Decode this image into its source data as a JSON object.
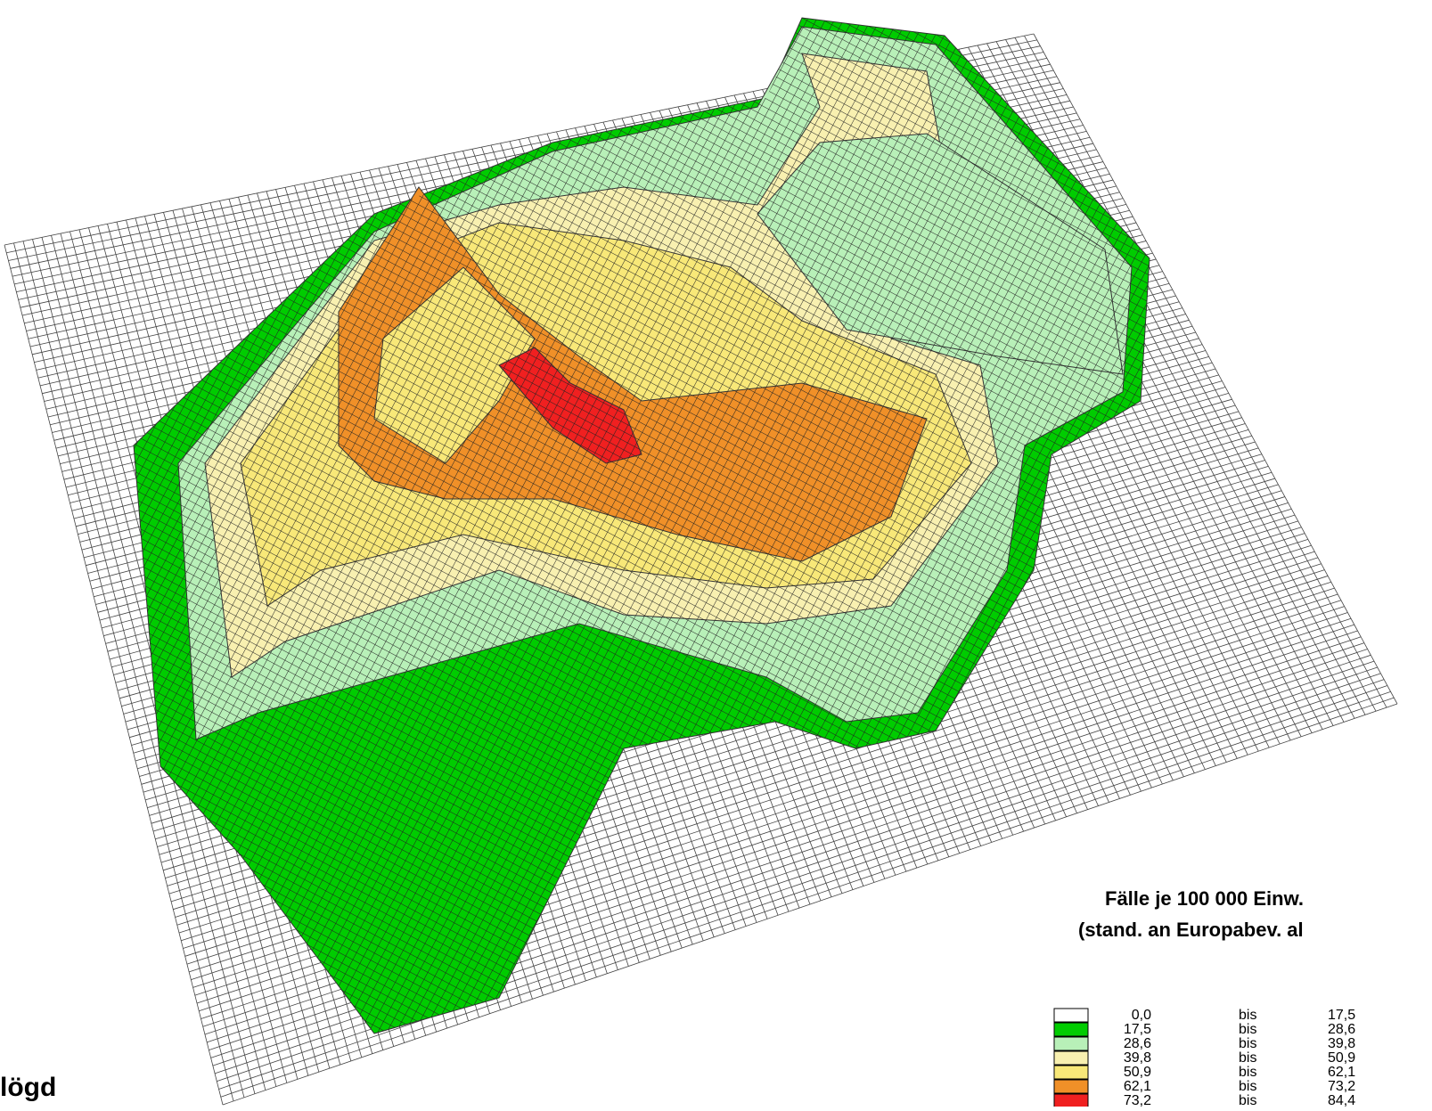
{
  "title": "Fälle je 100 000 Einw.",
  "subtitle": "(stand. an Europabev. al",
  "corner_label": "lögd",
  "legend": [
    {
      "color": "#ffffff",
      "from": "0,0",
      "sep": "bis",
      "to": "17,5"
    },
    {
      "color": "#00cc00",
      "from": "17,5",
      "sep": "bis",
      "to": "28,6"
    },
    {
      "color": "#b8f0b8",
      "from": "28,6",
      "sep": "bis",
      "to": "39,8"
    },
    {
      "color": "#f8f0b0",
      "from": "39,8",
      "sep": "bis",
      "to": "50,9"
    },
    {
      "color": "#f8e878",
      "from": "50,9",
      "sep": "bis",
      "to": "62,1"
    },
    {
      "color": "#f09028",
      "from": "62,1",
      "sep": "bis",
      "to": "73,2"
    },
    {
      "color": "#f02020",
      "from": "73,2",
      "sep": "bis",
      "to": "84,4"
    }
  ]
}
